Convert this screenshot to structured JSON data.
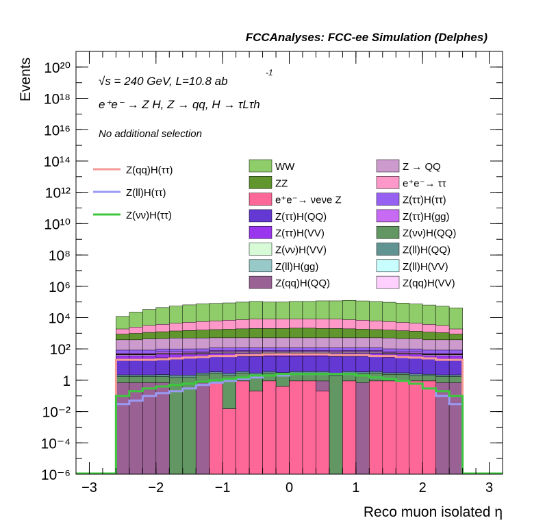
{
  "header": {
    "title": "FCCAnalyses: FCC-ee Simulation (Delphes)"
  },
  "labels": {
    "energy": "√s = 240 GeV, L=10.8 ab",
    "energy_sup": "-1",
    "process": "e⁺e⁻ → Z H, Z → qq, H → τLτh",
    "selection": "No additional selection"
  },
  "chart_data": {
    "type": "bar",
    "title": "",
    "xlabel": "Reco muon isolated η",
    "ylabel": "Events",
    "xlim": [
      -3.2,
      3.2
    ],
    "ylim": [
      1e-06,
      1e+21
    ],
    "yscale": "log",
    "x_ticks": [
      "−3",
      "−2",
      "−1",
      "0",
      "1",
      "2",
      "3"
    ],
    "x_tick_values": [
      -3,
      -2,
      -1,
      0,
      1,
      2,
      3
    ],
    "y_ticks": [
      "10⁻⁶",
      "10⁻⁴",
      "10⁻²",
      "1",
      "10²",
      "10⁴",
      "10⁶",
      "10⁸",
      "10¹⁰",
      "10¹²",
      "10¹⁴",
      "10¹⁶",
      "10¹⁸",
      "10²⁰"
    ],
    "y_tick_values": [
      1e-06,
      0.0001,
      0.01,
      1,
      100.0,
      10000.0,
      1000000.0,
      100000000.0,
      10000000000.0,
      1000000000000.0,
      100000000000000.0,
      1e+16,
      1e+18,
      1e+20
    ],
    "bin_range": [
      -2.6,
      2.6
    ],
    "n_bins": 26,
    "stack_order_bottom_to_top": [
      "e⁺e⁻→ νeνe Z",
      "Z(qq)H(QQ)",
      "Z(νν)H(QQ)",
      "Z(ll)H(QQ)",
      "Z(ττ)H(QQ)",
      "Z(ττ)H(VV)",
      "Z(qq)H(VV)",
      "Z(νν)H(VV)",
      "Z(ll)H(VV)",
      "Z(ll)H(gg)",
      "Z(ττ)H(gg)",
      "Z(ττ)H(ττ)",
      "Z → QQ",
      "ZZ",
      "e⁺e⁻→ ττ",
      "WW"
    ],
    "background_series": [
      {
        "name": "WW",
        "color": "#8fcd6a",
        "values": [
          10000,
          20000,
          30000,
          40000,
          50000,
          60000,
          70000,
          75000,
          80000,
          90000,
          100000,
          90000,
          90000,
          100000,
          100000,
          110000,
          110000,
          120000,
          110000,
          100000,
          90000,
          80000,
          70000,
          60000,
          50000,
          40000
        ]
      },
      {
        "name": "ZZ",
        "color": "#61962f",
        "values": [
          500,
          600,
          700,
          800,
          900,
          1000,
          1100,
          1200,
          1300,
          1400,
          1500,
          1500,
          1500,
          1600,
          1600,
          1500,
          1500,
          1400,
          1300,
          1200,
          1100,
          1000,
          900,
          800,
          700,
          500
        ]
      },
      {
        "name": "e⁺e⁻→ νeνe Z",
        "color": "#fe6899",
        "values": [
          1e-07,
          1e-07,
          1e-07,
          1e-07,
          1e-07,
          1e-07,
          1e-07,
          0.7,
          0.015,
          0.9,
          0.2,
          0.9,
          0.4,
          0.9,
          0.9,
          0.2,
          1e-07,
          0.9,
          1e-07,
          0.9,
          0.9,
          0.9,
          0.9,
          0.9,
          1e-07,
          1e-07
        ]
      },
      {
        "name": "Z(ττ)H(QQ)",
        "color": "#6438d3",
        "values": [
          20,
          20,
          20,
          25,
          25,
          25,
          25,
          30,
          30,
          30,
          30,
          30,
          30,
          30,
          30,
          30,
          30,
          30,
          30,
          30,
          25,
          25,
          25,
          20,
          20,
          20
        ]
      },
      {
        "name": "Z(ττ)H(VV)",
        "color": "#9b36ef",
        "values": [
          15,
          15,
          15,
          18,
          18,
          18,
          18,
          20,
          20,
          20,
          20,
          20,
          20,
          20,
          20,
          20,
          20,
          20,
          20,
          20,
          18,
          18,
          18,
          15,
          15,
          15
        ]
      },
      {
        "name": "Z(νν)H(VV)",
        "color": "#d6fbd6",
        "values": [
          2,
          2,
          2,
          2,
          2,
          3,
          3,
          3,
          3,
          3,
          3,
          3,
          3,
          3,
          3,
          3,
          3,
          3,
          3,
          3,
          3,
          2,
          2,
          2,
          2,
          2
        ]
      },
      {
        "name": "Z(ll)H(gg)",
        "color": "#97c9c9",
        "values": [
          1,
          1,
          1,
          1,
          1,
          1,
          1,
          1,
          1,
          1,
          1,
          1,
          1,
          1,
          1,
          1,
          1,
          1,
          1,
          1,
          1,
          1,
          1,
          1,
          1,
          1
        ]
      },
      {
        "name": "Z(qq)H(QQ)",
        "color": "#9a6294",
        "values": [
          0.7,
          0.7,
          0.7,
          0.7,
          1e-07,
          1e-07,
          0.7,
          0.001,
          1e-07,
          1e-07,
          1e-07,
          1e-07,
          1e-07,
          1e-07,
          1e-07,
          0.7,
          1e-07,
          1e-07,
          0.7,
          1e-07,
          1e-07,
          1e-07,
          1e-07,
          1e-05,
          0.7,
          0.7
        ]
      },
      {
        "name": "Z → QQ",
        "color": "#cc9acd",
        "values": [
          300,
          300,
          350,
          350,
          400,
          400,
          400,
          400,
          400,
          400,
          400,
          400,
          400,
          400,
          400,
          400,
          400,
          400,
          400,
          400,
          400,
          350,
          350,
          300,
          300,
          300
        ]
      },
      {
        "name": "e⁺e⁻→ ττ",
        "color": "#fe98c9",
        "values": [
          1000,
          1500,
          2000,
          2500,
          3000,
          3500,
          4000,
          4500,
          5000,
          5500,
          6000,
          6000,
          6000,
          6000,
          6000,
          6000,
          6000,
          5500,
          5000,
          4500,
          4000,
          3500,
          3000,
          2500,
          2000,
          1000
        ]
      },
      {
        "name": "Z(ττ)H(ττ)",
        "color": "#9661f2",
        "values": [
          30,
          30,
          30,
          35,
          35,
          35,
          35,
          40,
          40,
          40,
          40,
          40,
          40,
          40,
          40,
          40,
          40,
          40,
          40,
          40,
          35,
          35,
          35,
          30,
          30,
          30
        ]
      },
      {
        "name": "Z(ττ)H(gg)",
        "color": "#c76bf4",
        "values": [
          8,
          8,
          8,
          10,
          10,
          10,
          10,
          12,
          12,
          12,
          12,
          12,
          12,
          12,
          12,
          12,
          12,
          12,
          12,
          12,
          10,
          10,
          10,
          8,
          8,
          8
        ]
      },
      {
        "name": "Z(νν)H(QQ)",
        "color": "#629662",
        "values": [
          1,
          1,
          1,
          1,
          1.5,
          1.5,
          1.5,
          2,
          2,
          2,
          2,
          2,
          2,
          2,
          2,
          2,
          2,
          2,
          2,
          2,
          1.5,
          1.5,
          1,
          1,
          1,
          1
        ]
      },
      {
        "name": "Z(ll)H(QQ)",
        "color": "#629393",
        "values": [
          0.5,
          0.5,
          0.5,
          0.6,
          0.6,
          0.6,
          0.7,
          0.7,
          0.7,
          0.7,
          0.7,
          0.7,
          0.7,
          0.7,
          0.7,
          0.7,
          0.7,
          0.7,
          0.7,
          0.7,
          0.6,
          0.6,
          0.6,
          0.5,
          0.5,
          0.5
        ]
      },
      {
        "name": "Z(ll)H(VV)",
        "color": "#c9fefe",
        "values": [
          0.5,
          0.5,
          0.5,
          0.5,
          0.5,
          0.5,
          0.5,
          0.5,
          0.5,
          0.5,
          0.5,
          0.5,
          0.5,
          0.5,
          0.5,
          0.5,
          0.5,
          0.5,
          0.5,
          0.5,
          0.5,
          0.5,
          0.5,
          0.5,
          0.5,
          0.5
        ]
      },
      {
        "name": "Z(qq)H(VV)",
        "color": "#fdd0fd",
        "values": [
          5,
          5,
          5,
          6,
          6,
          6,
          6,
          7,
          7,
          7,
          7,
          7,
          7,
          7,
          7,
          7,
          7,
          7,
          7,
          7,
          6,
          6,
          6,
          5,
          5,
          5
        ]
      }
    ],
    "signal_series": [
      {
        "name": "Z(qq)H(ττ)",
        "color": "#f59a94",
        "values": [
          20,
          20,
          20,
          22,
          25,
          28,
          30,
          35,
          35,
          40,
          40,
          45,
          45,
          45,
          45,
          45,
          40,
          40,
          40,
          35,
          35,
          30,
          28,
          25,
          20,
          20
        ]
      },
      {
        "name": "Z(ll)H(ττ)",
        "color": "#9a9af5",
        "values": [
          0.03,
          0.05,
          0.1,
          0.15,
          0.2,
          0.3,
          0.5,
          0.7,
          0.9,
          1.2,
          1.5,
          2,
          2,
          2.5,
          2.5,
          2.5,
          2.5,
          2.5,
          2,
          1.5,
          1.2,
          0.9,
          0.6,
          0.3,
          0.1,
          0.03
        ]
      },
      {
        "name": "Z(νν)H(ττ)",
        "color": "#3cc83c",
        "values": [
          0.1,
          0.2,
          0.3,
          0.4,
          0.5,
          0.6,
          0.8,
          1,
          1.2,
          1.5,
          2,
          2,
          2.5,
          2.5,
          2.5,
          2.5,
          2.5,
          2.5,
          2,
          1.5,
          1.2,
          0.9,
          0.6,
          0.3,
          0.2,
          0.1
        ]
      }
    ],
    "legend_placement": "top-right",
    "grid": false
  }
}
